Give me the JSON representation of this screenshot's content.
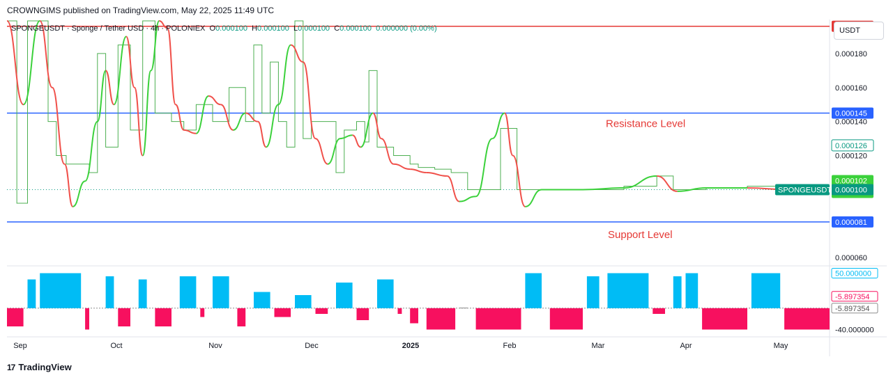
{
  "header": {
    "publisher_line": "CROWNGIMS published on TradingView.com, May 22, 2025 11:49 UTC"
  },
  "legend": {
    "symbol_line": "SPONGEUSDT · Sponge / Tether USD · 4h · POLONIEX",
    "o_label": "O",
    "o_value": "0.000100",
    "h_label": "H",
    "h_value": "0.000100",
    "l_label": "L",
    "l_value": "0.000100",
    "c_label": "C",
    "c_value": "0.000100",
    "change": "0.000000 (0.00%)"
  },
  "currency_button": "USDT",
  "footer": {
    "brand": "TradingView",
    "logo_text": "17"
  },
  "colors": {
    "resistance": "#e53935",
    "level_line": "#2962ff",
    "osc_up": "#2196f3",
    "ribbon_green": "#3bd13b",
    "ribbon_red": "#f0504a",
    "osc_pos": "#00bcf5",
    "osc_neg": "#f7105f",
    "osc_neutral": "#8d8d8d",
    "price_line": "#089981"
  },
  "chart_data": {
    "type": "line",
    "symbol": "SPONGEUSDT",
    "timeframe": "4h",
    "x_ticks": [
      "Sep",
      "Oct",
      "Nov",
      "Dec",
      "2025",
      "Feb",
      "Mar",
      "Apr",
      "May"
    ],
    "y_ticks": [
      "0.000060",
      "0.000080",
      "0.000100",
      "0.000120",
      "0.000140",
      "0.000160",
      "0.000180"
    ],
    "ylim": [
      5.6e-05,
      0.0002
    ],
    "price_levels": [
      {
        "name": "",
        "value": 0.000196,
        "label": "0.000196",
        "color": "#e53935"
      },
      {
        "name": "Resistance Level",
        "value": 0.000145,
        "label": "0.000145",
        "color": "#2962ff"
      },
      {
        "name": "Support Level",
        "value": 8.1e-05,
        "label": "0.000081",
        "color": "#2962ff"
      }
    ],
    "annotations": [
      "Resistance Level",
      "Support Level"
    ],
    "axis_tags": [
      {
        "label": "0.000126",
        "value": 0.000126,
        "style": "outline-green"
      },
      {
        "label": "0.000102",
        "value": 0.000102,
        "style": "fill-green"
      },
      {
        "label": "0.000102",
        "value": 0.000102,
        "style": "fill-green"
      },
      {
        "label": "0.000100",
        "value": 0.0001,
        "style": "fill-teal"
      }
    ],
    "last_price_tag": "SPONGEUSDT",
    "last_price": 0.0001,
    "price_series": [
      [
        0,
        0.000205
      ],
      [
        0.012,
        9.2e-05
      ],
      [
        0.025,
        0.000205
      ],
      [
        0.045,
        0.000205
      ],
      [
        0.05,
        0.00014
      ],
      [
        0.06,
        0.00012
      ],
      [
        0.072,
        0.000115
      ],
      [
        0.1,
        0.00011
      ],
      [
        0.11,
        0.00018
      ],
      [
        0.12,
        0.000125
      ],
      [
        0.135,
        0.000185
      ],
      [
        0.15,
        0.000135
      ],
      [
        0.165,
        0.000205
      ],
      [
        0.18,
        0.000145
      ],
      [
        0.2,
        0.00014
      ],
      [
        0.215,
        0.000135
      ],
      [
        0.23,
        0.00015
      ],
      [
        0.25,
        0.00014
      ],
      [
        0.27,
        0.00016
      ],
      [
        0.29,
        0.00014
      ],
      [
        0.3,
        0.000185
      ],
      [
        0.31,
        0.000145
      ],
      [
        0.32,
        0.000175
      ],
      [
        0.33,
        0.00014
      ],
      [
        0.34,
        0.000125
      ],
      [
        0.35,
        0.0002
      ],
      [
        0.36,
        0.00013
      ],
      [
        0.37,
        0.00014
      ],
      [
        0.385,
        0.00014
      ],
      [
        0.4,
        0.00011
      ],
      [
        0.41,
        0.000135
      ],
      [
        0.425,
        0.00014
      ],
      [
        0.435,
        0.000128
      ],
      [
        0.44,
        0.00017
      ],
      [
        0.45,
        0.000125
      ],
      [
        0.47,
        0.00012
      ],
      [
        0.49,
        0.000115
      ],
      [
        0.5,
        0.000113
      ],
      [
        0.52,
        0.000112
      ],
      [
        0.54,
        0.00011
      ],
      [
        0.56,
        0.0001
      ],
      [
        0.58,
        0.0001
      ],
      [
        0.6,
        0.000136
      ],
      [
        0.615,
        0.000136
      ],
      [
        0.62,
        0.0001
      ],
      [
        0.65,
        0.0001
      ],
      [
        0.7,
        0.0001
      ],
      [
        0.75,
        0.000102
      ],
      [
        0.79,
        0.000108
      ],
      [
        0.81,
        0.0001
      ],
      [
        0.85,
        0.000101
      ],
      [
        0.9,
        0.000102
      ],
      [
        0.95,
        0.000101
      ],
      [
        1.0,
        0.0001
      ]
    ],
    "ribbon_series": [
      [
        0,
        0.0002
      ],
      [
        0.02,
        0.00015
      ],
      [
        0.04,
        0.0002
      ],
      [
        0.055,
        0.00016
      ],
      [
        0.07,
        0.000115
      ],
      [
        0.08,
        9e-05
      ],
      [
        0.095,
        0.000105
      ],
      [
        0.11,
        0.00014
      ],
      [
        0.12,
        0.00017
      ],
      [
        0.13,
        0.00015
      ],
      [
        0.145,
        0.00019
      ],
      [
        0.155,
        0.00016
      ],
      [
        0.165,
        0.00012
      ],
      [
        0.175,
        0.00017
      ],
      [
        0.185,
        0.0002
      ],
      [
        0.195,
        0.000195
      ],
      [
        0.205,
        0.00015
      ],
      [
        0.215,
        0.000135
      ],
      [
        0.23,
        0.000133
      ],
      [
        0.245,
        0.000155
      ],
      [
        0.26,
        0.00015
      ],
      [
        0.275,
        0.000135
      ],
      [
        0.29,
        0.000145
      ],
      [
        0.305,
        0.00014
      ],
      [
        0.315,
        0.000125
      ],
      [
        0.33,
        0.00015
      ],
      [
        0.345,
        0.000185
      ],
      [
        0.36,
        0.000175
      ],
      [
        0.375,
        0.00013
      ],
      [
        0.39,
        0.000115
      ],
      [
        0.405,
        0.00013
      ],
      [
        0.42,
        0.000132
      ],
      [
        0.43,
        0.000125
      ],
      [
        0.445,
        0.000145
      ],
      [
        0.455,
        0.00013
      ],
      [
        0.47,
        0.000115
      ],
      [
        0.49,
        0.000112
      ],
      [
        0.51,
        0.00011
      ],
      [
        0.535,
        0.000108
      ],
      [
        0.55,
        9.3e-05
      ],
      [
        0.57,
        9.6e-05
      ],
      [
        0.59,
        0.00013
      ],
      [
        0.605,
        0.000145
      ],
      [
        0.615,
        0.00012
      ],
      [
        0.63,
        9e-05
      ],
      [
        0.65,
        0.0001
      ],
      [
        0.7,
        0.0001
      ],
      [
        0.75,
        0.000101
      ],
      [
        0.79,
        0.000108
      ],
      [
        0.815,
        9.9e-05
      ],
      [
        0.85,
        0.000101
      ],
      [
        0.9,
        0.000101
      ],
      [
        0.95,
        0.0001
      ],
      [
        1.0,
        0.0001
      ]
    ],
    "oscillator": {
      "labels": [
        "50.000000",
        "-5.897354",
        "-5.897354",
        "-40.000000"
      ],
      "ylim": [
        -45,
        55
      ],
      "segments": [
        [
          0.0,
          0.02,
          -35
        ],
        [
          0.025,
          0.035,
          40
        ],
        [
          0.04,
          0.09,
          50
        ],
        [
          0.095,
          0.1,
          -40
        ],
        [
          0.12,
          0.13,
          45
        ],
        [
          0.135,
          0.15,
          -35
        ],
        [
          0.16,
          0.17,
          40
        ],
        [
          0.18,
          0.2,
          -35
        ],
        [
          0.21,
          0.23,
          45
        ],
        [
          0.235,
          0.24,
          -20
        ],
        [
          0.25,
          0.27,
          45
        ],
        [
          0.28,
          0.29,
          -35
        ],
        [
          0.3,
          0.32,
          20
        ],
        [
          0.325,
          0.345,
          -20
        ],
        [
          0.35,
          0.37,
          15
        ],
        [
          0.375,
          0.39,
          -15
        ],
        [
          0.4,
          0.42,
          35
        ],
        [
          0.425,
          0.44,
          -25
        ],
        [
          0.45,
          0.47,
          40
        ],
        [
          0.475,
          0.48,
          -15
        ],
        [
          0.49,
          0.5,
          -30
        ],
        [
          0.51,
          0.545,
          -40
        ],
        [
          0.55,
          0.56,
          -5
        ],
        [
          0.57,
          0.625,
          -40
        ],
        [
          0.63,
          0.65,
          50
        ],
        [
          0.66,
          0.7,
          -40
        ],
        [
          0.705,
          0.72,
          45
        ],
        [
          0.73,
          0.78,
          50
        ],
        [
          0.785,
          0.8,
          -15
        ],
        [
          0.81,
          0.82,
          45
        ],
        [
          0.825,
          0.84,
          50
        ],
        [
          0.845,
          0.9,
          -40
        ],
        [
          0.905,
          0.94,
          50
        ],
        [
          0.945,
          1.0,
          -40
        ]
      ]
    }
  }
}
